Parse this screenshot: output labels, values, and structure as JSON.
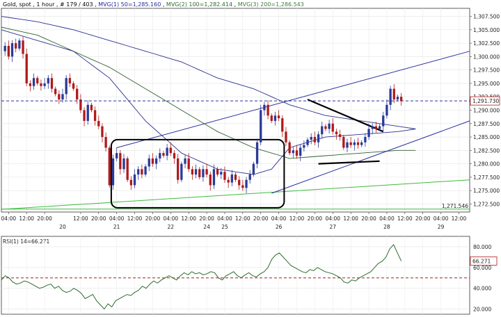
{
  "header": {
    "symbol": "Gold, spot",
    "interval": "1 hour",
    "bars": "# 179 / 403",
    "ma1": "MVG(1) 50=1,285.160",
    "ma2": "MVG(2) 100=1,282.414",
    "ma3": "MVG(3) 200=1,286.543"
  },
  "rsi_header": "RSI(1) 14=66.271",
  "colors": {
    "candle_up": "#2a3a99",
    "candle_down": "#b01a1a",
    "ma50": "#2a2f8f",
    "ma100": "#2d5f2d",
    "ma200": "#4f8a4f",
    "rsi": "#2e6b2e",
    "trendline_green": "#3dbb3d",
    "channel": "#2a2f9c",
    "hline": "#2a2f9c",
    "rsi_mid": "#a02020"
  },
  "chart_data": [
    {
      "type": "candlestick",
      "title": "Gold, spot , 1 hour",
      "ylim": [
        1271,
        1309
      ],
      "y_ticks": [
        "1,307.500",
        "1,305.000",
        "1,302.500",
        "1,300.000",
        "1,297.500",
        "1,295.000",
        "1,292.500",
        "1,290.000",
        "1,287.500",
        "1,285.000",
        "1,282.500",
        "1,280.000",
        "1,277.500",
        "1,275.000",
        "1,272.500"
      ],
      "y_tick_values": [
        1307.5,
        1305,
        1302.5,
        1300,
        1297.5,
        1295,
        1292.5,
        1290,
        1287.5,
        1285,
        1282.5,
        1280,
        1277.5,
        1275,
        1272.5
      ],
      "current_price_label": "1,291.730",
      "current_price": 1291.73,
      "support_label": "1,271.546",
      "support_value": 1271.546,
      "x_ticks_time": [
        "04:00",
        "12:00",
        "20:00",
        "12:00",
        "20:00",
        "04:00",
        "12:00",
        "20:00",
        "04:00",
        "12:00",
        "20:00",
        "04:00",
        "12:00",
        "20:00",
        "04:00",
        "12:00",
        "20:00",
        "04:00",
        "12:00",
        "20:00",
        "04:00",
        "12:00",
        "20:00",
        "04:00",
        "12:00"
      ],
      "x_ticks_date": [
        "20",
        "21",
        "22",
        "24",
        "25",
        "26",
        "27",
        "28",
        "29"
      ],
      "x_range": [
        0,
        130
      ],
      "time_tick_x": [
        2,
        7,
        12,
        22,
        27,
        32,
        37,
        42,
        47,
        52,
        57,
        62,
        67,
        72,
        77,
        82,
        87,
        92,
        97,
        102,
        107,
        112,
        117,
        122,
        127
      ],
      "date_tick_x": [
        17,
        32,
        47,
        57,
        62,
        77,
        92,
        107,
        122
      ],
      "price_path": [
        1301,
        1302,
        1300,
        1302.5,
        1301.5,
        1303,
        1300.5,
        1295,
        1294.5,
        1296,
        1295,
        1294.5,
        1295,
        1296,
        1294,
        1293,
        1292,
        1293,
        1296,
        1295,
        1294,
        1292,
        1290,
        1288,
        1291,
        1290,
        1288,
        1287,
        1285,
        1283,
        1276,
        1281,
        1282,
        1279,
        1281,
        1277,
        1276,
        1278,
        1279,
        1278,
        1279.5,
        1281,
        1280,
        1281,
        1282,
        1281.5,
        1283,
        1282,
        1281,
        1277,
        1280,
        1281,
        1279,
        1278,
        1279,
        1277.5,
        1279,
        1278,
        1276,
        1279,
        1278,
        1278.5,
        1277,
        1276.5,
        1278,
        1277,
        1276,
        1275.5,
        1277,
        1278,
        1280,
        1284,
        1290,
        1291,
        1289,
        1288,
        1289,
        1288.5,
        1286,
        1284,
        1282,
        1282.5,
        1281.5,
        1283,
        1283.5,
        1284.5,
        1285,
        1284,
        1285.5,
        1287,
        1286.5,
        1287.5,
        1286,
        1285.5,
        1285,
        1283,
        1284,
        1283.5,
        1284,
        1283.5,
        1284,
        1285,
        1286.5,
        1287,
        1286.5,
        1287,
        1289,
        1291,
        1294,
        1292,
        1292.5,
        1291.7
      ],
      "ma50_path": [
        [
          0,
          1305
        ],
        [
          10,
          1303
        ],
        [
          20,
          1301
        ],
        [
          30,
          1296
        ],
        [
          40,
          1288
        ],
        [
          50,
          1282
        ],
        [
          60,
          1279
        ],
        [
          70,
          1278
        ],
        [
          75,
          1279
        ],
        [
          80,
          1283
        ],
        [
          90,
          1285
        ],
        [
          100,
          1285.5
        ],
        [
          110,
          1286
        ],
        [
          115,
          1286.5
        ]
      ],
      "ma100_path": [
        [
          0,
          1305.5
        ],
        [
          10,
          1304
        ],
        [
          20,
          1301
        ],
        [
          30,
          1298
        ],
        [
          40,
          1294
        ],
        [
          50,
          1290
        ],
        [
          60,
          1286
        ],
        [
          70,
          1283
        ],
        [
          80,
          1281
        ],
        [
          90,
          1281.5
        ],
        [
          100,
          1282
        ],
        [
          110,
          1282.5
        ],
        [
          115,
          1282.5
        ]
      ],
      "ma200_path": [
        [
          0,
          1307.5
        ],
        [
          10,
          1306.5
        ],
        [
          20,
          1305
        ],
        [
          30,
          1303
        ],
        [
          40,
          1301
        ],
        [
          50,
          1299
        ],
        [
          60,
          1296
        ],
        [
          70,
          1294
        ],
        [
          80,
          1291
        ],
        [
          90,
          1289
        ],
        [
          100,
          1288
        ],
        [
          110,
          1287
        ],
        [
          115,
          1286.5
        ]
      ],
      "green_trendline": [
        [
          0,
          1271.5
        ],
        [
          130,
          1277
        ]
      ],
      "channel_upper": [
        [
          32,
          1283
        ],
        [
          130,
          1301
        ]
      ],
      "channel_lower": [
        [
          75,
          1274.5
        ],
        [
          130,
          1288
        ]
      ],
      "wedge_upper": [
        [
          85,
          1292
        ],
        [
          106,
          1286
        ]
      ],
      "wedge_lower": [
        [
          88,
          1280
        ],
        [
          105,
          1280.5
        ]
      ],
      "box": {
        "x0": 30.5,
        "x1": 78.5,
        "y0": 1284.5,
        "y1": 1271.8
      }
    },
    {
      "type": "line",
      "title": "RSI(1) 14=66.271",
      "ylim": [
        15,
        90
      ],
      "y_ticks": [
        "80.000",
        "60.000",
        "40.000",
        "20.000"
      ],
      "y_tick_values": [
        80,
        60,
        40,
        20
      ],
      "current_label": "66.271",
      "current_value": 66.271,
      "mid_line": 50,
      "values": [
        48,
        52,
        50,
        46,
        44,
        45,
        47,
        46,
        44,
        42,
        40,
        41,
        43,
        44,
        40,
        42,
        38,
        36,
        37,
        40,
        38,
        35,
        30,
        32,
        34,
        28,
        24,
        20,
        25,
        22,
        28,
        30,
        32,
        34,
        33,
        36,
        38,
        42,
        40,
        44,
        47,
        45,
        48,
        50,
        52,
        50,
        48,
        52,
        55,
        53,
        56,
        54,
        55,
        53,
        54,
        56,
        55,
        50,
        48,
        52,
        54,
        56,
        52,
        50,
        53,
        55,
        52,
        51,
        54,
        56,
        60,
        68,
        72,
        74,
        70,
        66,
        62,
        60,
        58,
        56,
        55,
        58,
        57,
        60,
        58,
        56,
        55,
        54,
        52,
        50,
        46,
        45,
        48,
        47,
        50,
        52,
        54,
        56,
        60,
        64,
        66,
        70,
        78,
        82,
        74,
        66.3
      ]
    }
  ]
}
